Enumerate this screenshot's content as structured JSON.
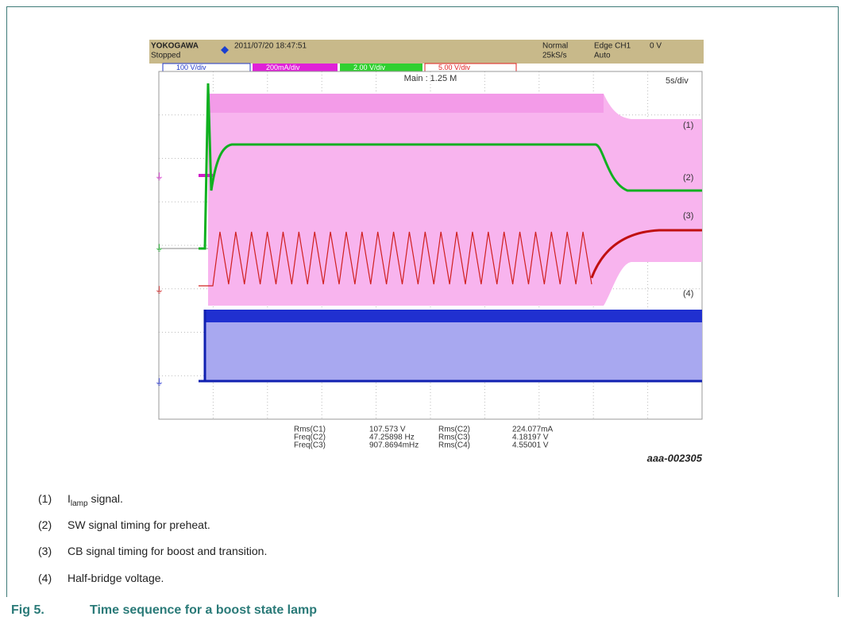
{
  "scope": {
    "brand": "YOKOGAWA",
    "timestamp": "2011/07/20 18:47:51",
    "status": "Stopped",
    "mode": "Normal",
    "sample_rate": "25kS/s",
    "trigger": "Edge CH1",
    "trigger_level": "0 V",
    "trigger_mode": "Auto",
    "channels": [
      "100 V/div",
      "200mA/div",
      "2.00 V/div",
      "5.00 V/div"
    ],
    "record": "Main : 1.25 M",
    "timebase": "5s/div",
    "trace_labels": [
      "(1)",
      "(2)",
      "(3)",
      "(4)"
    ],
    "measurements": [
      {
        "name": "Rms(C1)",
        "value": "107.573 V"
      },
      {
        "name": "Freq(C2)",
        "value": "47.25898 Hz"
      },
      {
        "name": "Freq(C3)",
        "value": "907.8694mHz"
      },
      {
        "name": "Rms(C2)",
        "value": "224.077mA"
      },
      {
        "name": "Rms(C3)",
        "value": "4.18197 V"
      },
      {
        "name": "Rms(C4)",
        "value": "4.55001 V"
      }
    ],
    "figure_id": "aaa-002305"
  },
  "notes": [
    {
      "marker": "(1)",
      "lead": "I",
      "sub": "lamp",
      "text": " signal."
    },
    {
      "marker": "(2)",
      "text": "SW signal timing for preheat."
    },
    {
      "marker": "(3)",
      "text": "CB signal timing for boost and transition."
    },
    {
      "marker": "(4)",
      "text": "Half-bridge voltage."
    }
  ],
  "caption": {
    "label": "Fig 5.",
    "title": "Time sequence for a boost state lamp"
  }
}
